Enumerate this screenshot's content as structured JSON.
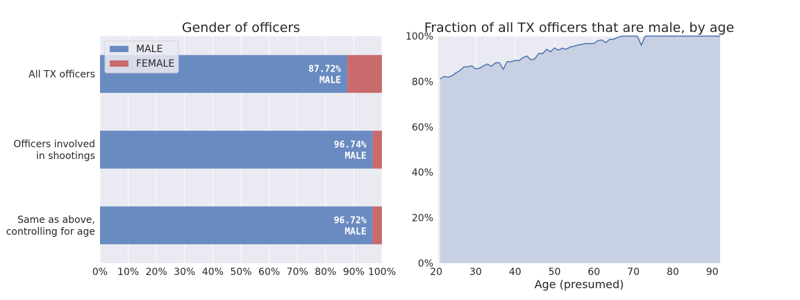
{
  "chart_data": [
    {
      "type": "bar",
      "orientation": "horizontal",
      "stacked": true,
      "title": "Gender of officers",
      "categories": [
        [
          "All TX officers"
        ],
        [
          "Officers involved",
          "in shootings"
        ],
        [
          "Same as above,",
          "controlling for age"
        ]
      ],
      "series": [
        {
          "name": "MALE",
          "color": "#6a8bc1",
          "values": [
            87.72,
            96.74,
            96.72
          ]
        },
        {
          "name": "FEMALE",
          "color": "#c96a6d",
          "values": [
            12.28,
            3.26,
            3.28
          ]
        }
      ],
      "data_labels": [
        [
          "87.72%",
          "MALE"
        ],
        [
          "96.74%",
          "MALE"
        ],
        [
          "96.72%",
          "MALE"
        ]
      ],
      "xlim": [
        0,
        100
      ],
      "xticks": [
        "0%",
        "10%",
        "20%",
        "30%",
        "40%",
        "50%",
        "60%",
        "70%",
        "80%",
        "90%",
        "100%"
      ],
      "grid": true,
      "legend_position": "top-left"
    },
    {
      "type": "area",
      "title": "Fraction of all TX officers that are male, by age",
      "xlabel": "Age (presumed)",
      "ylabel": "",
      "xlim": [
        20.5,
        92
      ],
      "ylim": [
        0,
        100
      ],
      "xticks": [
        20,
        30,
        40,
        50,
        60,
        70,
        80,
        90
      ],
      "yticks": [
        "0%",
        "20%",
        "40%",
        "60%",
        "80%",
        "100%"
      ],
      "grid": true,
      "line_color": "#4c72b0",
      "fill_color": "#c8d0e3",
      "x": [
        21,
        22,
        23,
        24,
        25,
        26,
        27,
        28,
        29,
        30,
        31,
        32,
        33,
        34,
        35,
        36,
        37,
        38,
        39,
        40,
        41,
        42,
        43,
        44,
        45,
        46,
        47,
        48,
        49,
        50,
        51,
        52,
        53,
        54,
        55,
        56,
        57,
        58,
        59,
        60,
        61,
        62,
        63,
        64,
        65,
        66,
        67,
        68,
        69,
        70,
        71,
        72,
        73,
        74,
        75,
        76,
        77,
        78,
        79,
        80,
        81,
        82,
        83,
        84,
        85,
        86,
        87,
        88,
        89,
        90,
        91,
        92
      ],
      "y": [
        81.2,
        82.2,
        81.9,
        82.5,
        83.8,
        84.8,
        86.4,
        86.5,
        86.9,
        85.6,
        85.9,
        86.9,
        87.7,
        86.7,
        88.2,
        88.3,
        85.4,
        88.8,
        88.7,
        89.3,
        89.2,
        90.6,
        91.2,
        89.6,
        90.0,
        92.4,
        92.3,
        94.2,
        93.1,
        94.8,
        93.8,
        94.7,
        94.2,
        95.2,
        95.6,
        96.1,
        96.4,
        96.8,
        96.7,
        96.8,
        98.0,
        98.3,
        97.1,
        98.6,
        98.6,
        99.4,
        100,
        100,
        100,
        100,
        100,
        96.0,
        100,
        100,
        100,
        100,
        100,
        100,
        100,
        100,
        100,
        100,
        100,
        100,
        100,
        100,
        100,
        100,
        100,
        100,
        100,
        100
      ]
    }
  ]
}
